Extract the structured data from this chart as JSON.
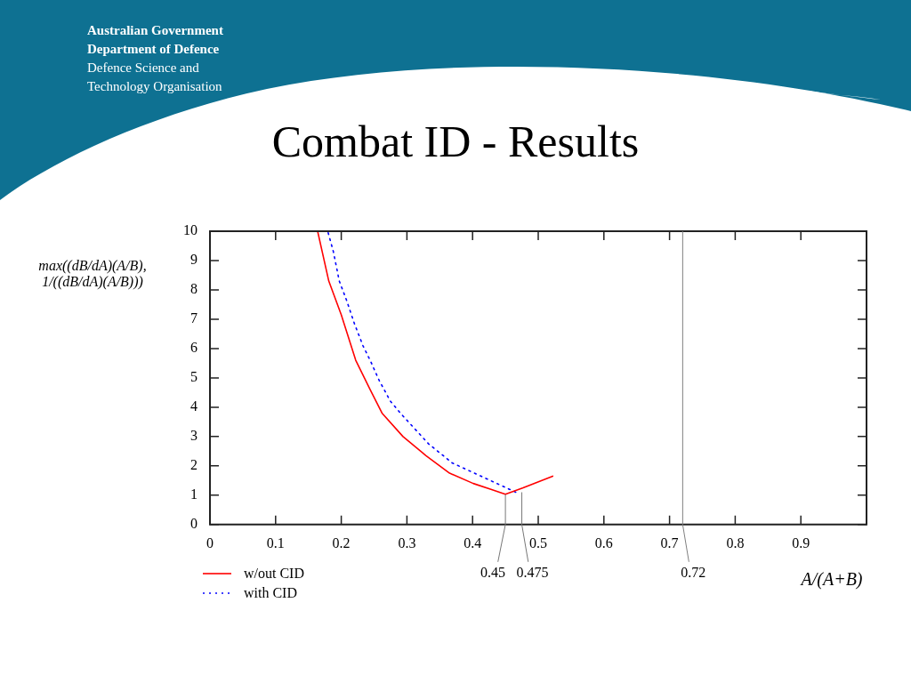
{
  "chart_data": {
    "type": "line",
    "title": "Combat ID - Results",
    "ylabel": "max((dB/dA)(A/B), 1/((dB/dA)(A/B)))",
    "xlabel": "A/(A+B)",
    "annotations": [
      "Australian Government",
      "Department of Defence",
      "Defence Science and Technology Organisation",
      {
        "text": "0.45",
        "x": 0.45,
        "y": 1.03
      },
      {
        "text": "0.475",
        "x": 0.475,
        "y": 1.1
      }
    ],
    "ref_lines": [
      {
        "axis": "x",
        "value": 0.72,
        "label": "0.72",
        "color": "#808080"
      }
    ],
    "xlim": [
      0,
      1
    ],
    "ylim": [
      0,
      10
    ],
    "xticks": [
      0,
      0.1,
      0.2,
      0.3,
      0.4,
      0.5,
      0.6,
      0.7,
      0.8,
      0.9
    ],
    "yticks": [
      0,
      1,
      2,
      3,
      4,
      5,
      6,
      7,
      8,
      9,
      10
    ],
    "grid": false,
    "legend": "bottom left",
    "marker": "none",
    "series": [
      {
        "name": "w/out CID",
        "color": "#ff0000",
        "line_style": "solid",
        "x": [
          0.164,
          0.181,
          0.2,
          0.222,
          0.244,
          0.262,
          0.294,
          0.329,
          0.365,
          0.401,
          0.428,
          0.45,
          0.477,
          0.522
        ],
        "values": [
          10,
          8.3,
          7.15,
          5.6,
          4.6,
          3.8,
          3.0,
          2.35,
          1.75,
          1.4,
          1.2,
          1.03,
          1.25,
          1.65
        ]
      },
      {
        "name": "with CID",
        "color": "#0000ff",
        "line_style": "dotted",
        "x": [
          0.18,
          0.188,
          0.197,
          0.208,
          0.22,
          0.233,
          0.244,
          0.258,
          0.275,
          0.292,
          0.333,
          0.369,
          0.466
        ],
        "values": [
          9.95,
          9.3,
          8.3,
          7.65,
          6.85,
          6.1,
          5.6,
          4.9,
          4.2,
          3.75,
          2.75,
          2.1,
          1.1
        ]
      }
    ]
  }
}
